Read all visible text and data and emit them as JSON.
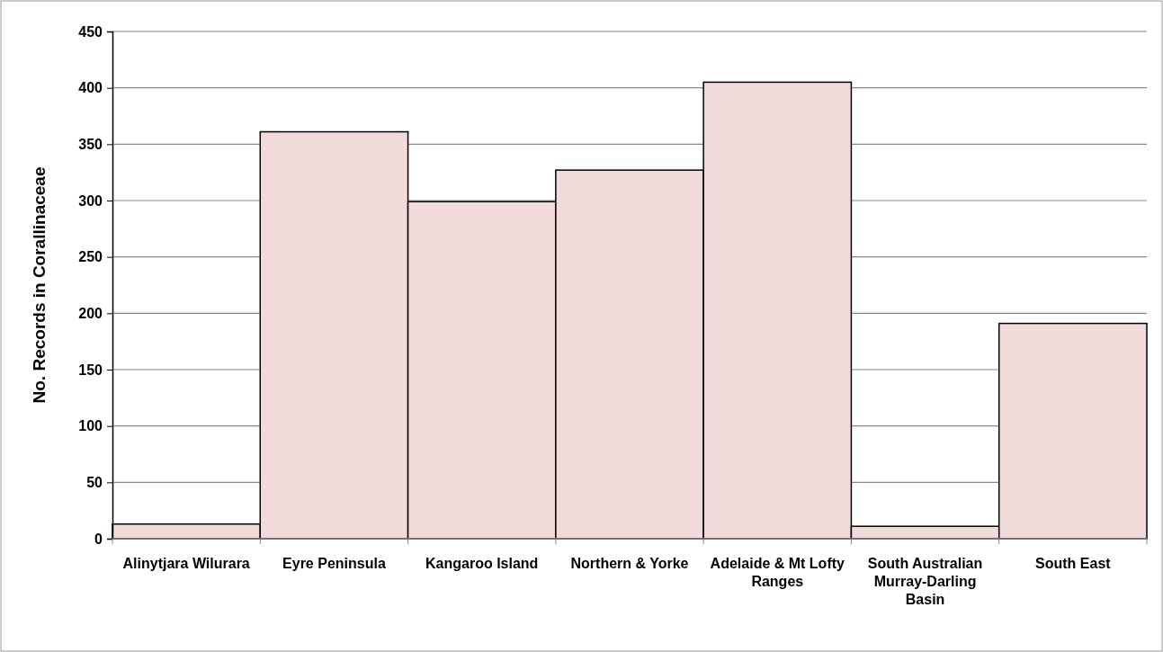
{
  "chart_data": {
    "type": "bar",
    "ylabel": "No. Records in Corallinaceae",
    "categories": [
      "Alinytjara Wilurara",
      "Eyre Peninsula",
      "Kangaroo Island",
      "Northern & Yorke",
      "Adelaide & Mt Lofty Ranges",
      "South Australian Murray-Darling Basin",
      "South East"
    ],
    "values": [
      13,
      361,
      299,
      327,
      405,
      11,
      191
    ],
    "color": "#f2dcdb",
    "ylim": [
      0,
      450
    ],
    "yticks": [
      0,
      50,
      100,
      150,
      200,
      250,
      300,
      350,
      400,
      450
    ],
    "grid": "y"
  }
}
